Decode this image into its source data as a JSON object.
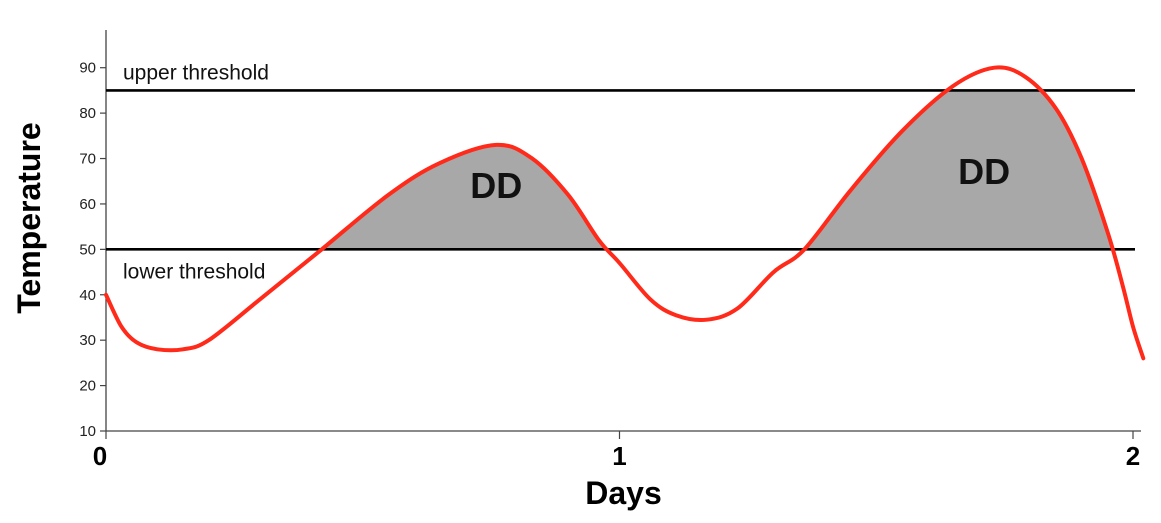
{
  "chart_data": {
    "type": "line",
    "xlabel": "Days",
    "ylabel": "Temperature",
    "xlim": [
      0,
      2
    ],
    "ylim": [
      10,
      95
    ],
    "xticks": [
      0,
      1,
      2
    ],
    "yticks": [
      10,
      20,
      30,
      40,
      50,
      60,
      70,
      80,
      90
    ],
    "grid": false,
    "series": [
      {
        "color": "#ff2a1a",
        "points": [
          [
            0.0,
            40
          ],
          [
            0.03,
            33
          ],
          [
            0.06,
            29.5
          ],
          [
            0.1,
            28
          ],
          [
            0.15,
            28
          ],
          [
            0.2,
            30
          ],
          [
            0.3,
            39
          ],
          [
            0.42,
            50
          ],
          [
            0.55,
            62
          ],
          [
            0.65,
            69
          ],
          [
            0.76,
            73
          ],
          [
            0.83,
            70
          ],
          [
            0.9,
            62
          ],
          [
            0.96,
            52
          ],
          [
            1.0,
            47
          ],
          [
            1.06,
            39
          ],
          [
            1.11,
            35.5
          ],
          [
            1.17,
            34.5
          ],
          [
            1.23,
            37
          ],
          [
            1.3,
            45
          ],
          [
            1.36,
            50
          ],
          [
            1.45,
            63
          ],
          [
            1.55,
            76
          ],
          [
            1.65,
            86
          ],
          [
            1.73,
            90
          ],
          [
            1.79,
            88
          ],
          [
            1.85,
            81
          ],
          [
            1.9,
            70
          ],
          [
            1.95,
            54
          ],
          [
            1.98,
            42
          ],
          [
            2.0,
            33
          ],
          [
            2.02,
            26
          ]
        ]
      }
    ],
    "thresholds": [
      {
        "value": 85,
        "label": "upper threshold",
        "color": "#000000"
      },
      {
        "value": 50,
        "label": "lower threshold",
        "color": "#000000"
      }
    ],
    "shaded_regions": [
      {
        "label": "DD",
        "fill": "#a8a8a8"
      },
      {
        "label": "DD",
        "fill": "#a8a8a8"
      }
    ]
  }
}
